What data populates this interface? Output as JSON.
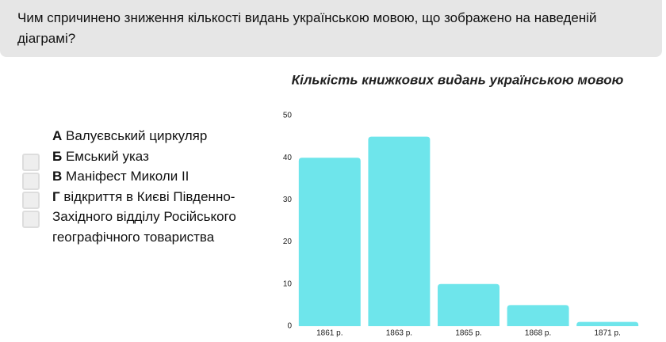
{
  "question": "Чим спричинено зниження кількості видань українською мовою, що зображено на наведеній діаграмі?",
  "options": [
    {
      "letter": "А",
      "text": "Валуєвський циркуляр"
    },
    {
      "letter": "Б",
      "text": "Емський указ"
    },
    {
      "letter": "В",
      "text": "Маніфест Миколи ІІ"
    },
    {
      "letter": "Г",
      "text": "відкриття в Києві Південно-Західного відділу Російського географічного товариства"
    }
  ],
  "chart_data": {
    "type": "bar",
    "title": "Кількість книжкових видань українською мовою",
    "categories": [
      "1861 р.",
      "1863 р.",
      "1865 р.",
      "1868 р.",
      "1871 р."
    ],
    "values": [
      40,
      45,
      10,
      5,
      1
    ],
    "color": "#6ee5eb",
    "ylim": [
      0,
      50
    ],
    "yticks": [
      0,
      10,
      20,
      30,
      40,
      50
    ],
    "grid": false
  }
}
